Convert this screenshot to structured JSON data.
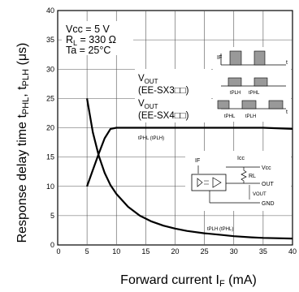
{
  "chart_data": {
    "type": "line",
    "xlabel": "Forward current I",
    "xlabel_sub": "F",
    "xlabel_unit": " (mA)",
    "ylabel": "Response delay time t",
    "ylabel_sub1": "PHL",
    "ylabel_mid": ", t",
    "ylabel_sub2": "PLH",
    "ylabel_unit": " (μs)",
    "xlim": [
      0,
      40
    ],
    "ylim": [
      0,
      40
    ],
    "xticks": [
      0,
      5,
      10,
      15,
      20,
      25,
      30,
      35,
      40
    ],
    "yticks": [
      0,
      5,
      10,
      15,
      20,
      25,
      30,
      35,
      40
    ],
    "grid": true,
    "conditions": {
      "vcc": "Vcc = 5 V",
      "rl": "R",
      "rl_sub": "L",
      "rl_val": " = 330 Ω",
      "ta": "Ta = 25°C"
    },
    "annotations": {
      "vout1": "V",
      "vout1_sub": "OUT",
      "model1": "(EE-SX3□□)",
      "vout2": "V",
      "vout2_sub": "OUT",
      "model2": "(EE-SX4□□)",
      "curve1": "tPHL (tPLH)",
      "curve2": "tPLH (tPHL)"
    },
    "timing_diagram": {
      "if_label": "IF",
      "t_label": "t",
      "tplh": "tPLH",
      "tphl": "tPHL"
    },
    "circuit": {
      "if_label": "IF",
      "icc_label": "Icc",
      "vcc_label": "Vcc",
      "rl_label": "RL",
      "out_label": "OUT",
      "vout_label": "VOUT",
      "gnd_label": "GND"
    },
    "series": [
      {
        "name": "tPHL (tPLH)",
        "x": [
          5,
          6,
          7,
          8,
          9,
          10,
          15,
          20,
          25,
          30,
          35,
          40
        ],
        "y": [
          10,
          12.8,
          15.6,
          18.2,
          19.8,
          20,
          20,
          20,
          20,
          20,
          20,
          19.8
        ]
      },
      {
        "name": "tPLH (tPHL)",
        "x": [
          5,
          6,
          7,
          8,
          9,
          10,
          12,
          14,
          16,
          18,
          20,
          22,
          25,
          28,
          30,
          33,
          35,
          40
        ],
        "y": [
          25,
          19.2,
          15.2,
          12.3,
          10.2,
          8.7,
          6.5,
          5.0,
          4.0,
          3.3,
          2.8,
          2.4,
          2.0,
          1.7,
          1.5,
          1.3,
          1.2,
          1.1
        ]
      }
    ]
  }
}
